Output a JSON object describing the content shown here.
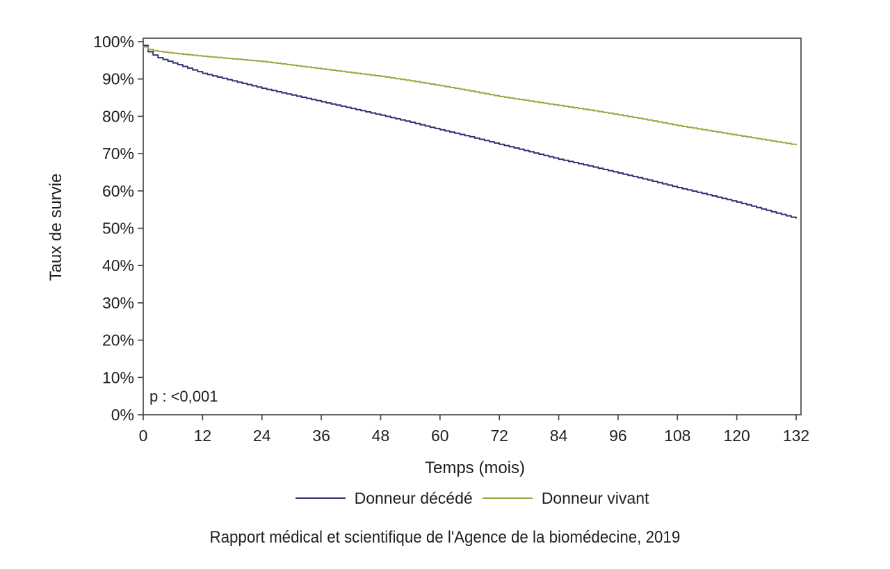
{
  "caption": "Rapport médical et scientifique de l'Agence de la biomédecine, 2019",
  "chart_data": {
    "type": "line",
    "subtype": "kaplan-meier-step",
    "title": "",
    "xlabel": "Temps (mois)",
    "ylabel": "Taux de survie",
    "annotation": "p : <0,001",
    "xlim": [
      0,
      132
    ],
    "ylim": [
      0,
      100
    ],
    "x_tick_values": [
      0,
      12,
      24,
      36,
      48,
      60,
      72,
      84,
      96,
      108,
      120,
      132
    ],
    "x_tick_labels": [
      "0",
      "12",
      "24",
      "36",
      "48",
      "60",
      "72",
      "84",
      "96",
      "108",
      "120",
      "132"
    ],
    "y_tick_values": [
      0,
      10,
      20,
      30,
      40,
      50,
      60,
      70,
      80,
      90,
      100
    ],
    "y_tick_labels": [
      "0%",
      "10%",
      "20%",
      "30%",
      "40%",
      "50%",
      "60%",
      "70%",
      "80%",
      "90%",
      "100%"
    ],
    "grid": false,
    "legend_position": "bottom-center",
    "axis_color": "#3d3d3d",
    "series": [
      {
        "name": "Donneur décédé",
        "color": "#2e3173",
        "x": [
          0,
          1,
          2,
          3,
          6,
          9,
          12,
          18,
          24,
          30,
          36,
          42,
          48,
          54,
          60,
          66,
          72,
          78,
          84,
          90,
          96,
          102,
          108,
          114,
          120,
          126,
          132
        ],
        "y": [
          99.0,
          97.3,
          96.4,
          95.7,
          94.3,
          92.9,
          91.5,
          89.5,
          87.5,
          85.7,
          83.9,
          82.1,
          80.3,
          78.4,
          76.4,
          74.5,
          72.5,
          70.5,
          68.5,
          66.7,
          64.8,
          62.9,
          60.9,
          59.0,
          57.0,
          54.8,
          52.6
        ]
      },
      {
        "name": "Donneur vivant",
        "color": "#a2a33e",
        "x": [
          0,
          1,
          2,
          3,
          6,
          9,
          12,
          18,
          24,
          30,
          36,
          42,
          48,
          54,
          60,
          66,
          72,
          78,
          84,
          90,
          96,
          102,
          108,
          114,
          120,
          126,
          132
        ],
        "y": [
          98.6,
          97.9,
          97.6,
          97.4,
          96.9,
          96.5,
          96.1,
          95.4,
          94.7,
          93.7,
          92.7,
          91.7,
          90.7,
          89.5,
          88.2,
          86.8,
          85.3,
          84.1,
          82.9,
          81.7,
          80.4,
          79.0,
          77.5,
          76.2,
          74.9,
          73.6,
          72.3
        ]
      }
    ]
  }
}
